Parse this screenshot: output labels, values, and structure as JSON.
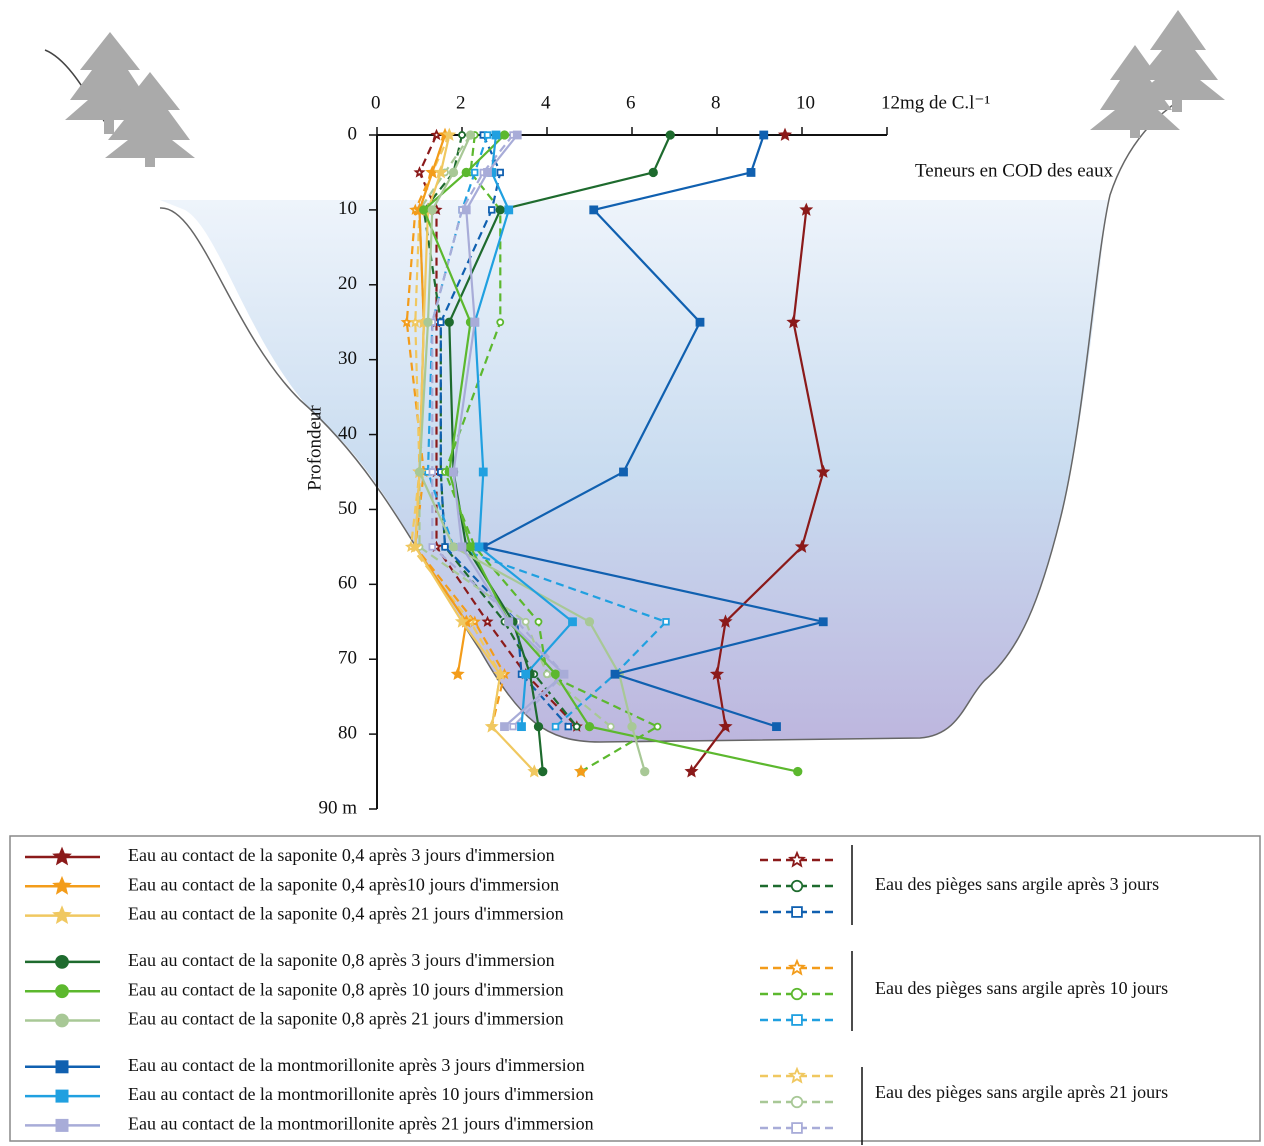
{
  "chart_data": {
    "type": "line",
    "annotation": "Teneurs en COD des eaux",
    "ylabel": "Profondeur",
    "xlim": [
      0,
      12
    ],
    "xticks": [
      0,
      2,
      4,
      6,
      8,
      10,
      {
        "value": 12,
        "label": "12mg de C.l⁻¹"
      }
    ],
    "ylim": [
      0,
      90
    ],
    "yticks": [
      0,
      10,
      20,
      30,
      40,
      50,
      60,
      70,
      80,
      {
        "value": 90,
        "label": "90 m"
      }
    ],
    "y_inverted": true,
    "depths": [
      0,
      5,
      10,
      25,
      45,
      55,
      65,
      72,
      79,
      85
    ],
    "series": [
      {
        "name": "Eau au contact de la saponite 0,4 après 3 jours d'immersion",
        "color": "#8b1a1a",
        "marker": "star",
        "dashed": false,
        "values": [
          9.6,
          null,
          10.1,
          9.8,
          10.5,
          10.0,
          8.2,
          8.0,
          8.2,
          7.4
        ]
      },
      {
        "name": "Eau au contact de la saponite 0,4 après10 jours d'immersion",
        "color": "#f39c1a",
        "marker": "star",
        "dashed": false,
        "values": [
          1.6,
          1.3,
          1.0,
          1.1,
          1.0,
          0.9,
          2.1,
          1.9,
          null,
          4.8
        ]
      },
      {
        "name": "Eau au contact de la saponite 0,4 après 21 jours d'immersion",
        "color": "#f0c860",
        "marker": "star",
        "dashed": false,
        "values": [
          1.7,
          1.5,
          1.2,
          1.1,
          1.0,
          0.9,
          2.0,
          2.9,
          2.7,
          3.7
        ]
      },
      {
        "name": "Eau au contact de la saponite 0,8 après 3 jours d'immersion",
        "color": "#1e6b2e",
        "marker": "circle",
        "dashed": false,
        "values": [
          6.9,
          6.5,
          2.9,
          1.7,
          1.8,
          2.1,
          3.2,
          3.6,
          3.8,
          3.9
        ]
      },
      {
        "name": "Eau au contact de la saponite 0,8 après 10 jours d'immersion",
        "color": "#5cb82e",
        "marker": "circle",
        "dashed": false,
        "values": [
          3.0,
          2.1,
          1.1,
          2.2,
          1.7,
          2.2,
          3.1,
          4.2,
          5.0,
          9.9
        ]
      },
      {
        "name": "Eau au contact de la saponite 0,8 après 21 jours d'immersion",
        "color": "#a8c896",
        "marker": "circle",
        "dashed": false,
        "values": [
          2.2,
          1.8,
          1.3,
          1.2,
          1.0,
          1.8,
          5.0,
          5.7,
          6.0,
          6.3
        ]
      },
      {
        "name": "Eau au contact de la montmorillonite après 3 jours d'immersion",
        "color": "#1060b0",
        "marker": "square",
        "dashed": false,
        "values": [
          9.1,
          8.8,
          5.1,
          7.6,
          5.8,
          2.5,
          10.5,
          5.6,
          9.4,
          null
        ]
      },
      {
        "name": "Eau au contact de la montmorillonite après 10 jours d'immersion",
        "color": "#20a0e0",
        "marker": "square",
        "dashed": false,
        "values": [
          2.8,
          2.7,
          3.1,
          2.3,
          2.5,
          2.4,
          4.6,
          3.5,
          3.4,
          null
        ]
      },
      {
        "name": "Eau au contact de la montmorillonite après 21 jours d'immersion",
        "color": "#a8acd8",
        "marker": "square",
        "dashed": false,
        "values": [
          3.3,
          2.6,
          2.1,
          2.3,
          1.8,
          2.0,
          3.1,
          4.4,
          3.0,
          null
        ]
      },
      {
        "color": "#8b1a1a",
        "marker": "star",
        "dashed": true,
        "values": [
          1.4,
          1.0,
          1.4,
          1.4,
          1.4,
          1.4,
          2.6,
          3.5,
          4.7,
          null
        ]
      },
      {
        "color": "#1e6b2e",
        "marker": "circle",
        "dashed": true,
        "values": [
          2.0,
          1.8,
          1.1,
          1.5,
          1.5,
          1.6,
          3.0,
          3.7,
          4.7,
          null
        ]
      },
      {
        "color": "#1060b0",
        "marker": "square",
        "dashed": true,
        "values": [
          2.5,
          2.9,
          2.7,
          1.5,
          1.5,
          1.6,
          3.3,
          3.4,
          4.5,
          null
        ]
      },
      {
        "color": "#f39c1a",
        "marker": "star",
        "dashed": true,
        "values": [
          1.6,
          1.3,
          0.9,
          0.7,
          1.1,
          0.9,
          2.3,
          3.0,
          2.7,
          null
        ]
      },
      {
        "color": "#5cb82e",
        "marker": "circle",
        "dashed": true,
        "values": [
          2.3,
          2.2,
          2.9,
          2.9,
          1.6,
          2.3,
          3.8,
          4.0,
          6.6,
          4.8
        ]
      },
      {
        "color": "#20a0e0",
        "marker": "square",
        "dashed": true,
        "values": [
          2.6,
          2.3,
          2.0,
          1.3,
          1.2,
          1.8,
          6.8,
          5.6,
          4.2,
          null
        ]
      },
      {
        "color": "#f0c860",
        "marker": "star",
        "dashed": true,
        "values": [
          1.7,
          1.3,
          1.0,
          0.9,
          1.0,
          0.8,
          2.2,
          2.9,
          2.7,
          null
        ]
      },
      {
        "color": "#a8c896",
        "marker": "circle",
        "dashed": true,
        "values": [
          2.2,
          1.6,
          1.0,
          1.1,
          1.0,
          1.0,
          3.5,
          4.0,
          5.5,
          null
        ]
      },
      {
        "color": "#a8acd8",
        "marker": "square",
        "dashed": true,
        "values": [
          3.2,
          2.5,
          2.0,
          1.3,
          1.3,
          1.3,
          3.3,
          4.4,
          3.2,
          null
        ]
      }
    ],
    "legend_groups": [
      "Eau des pièges sans argile après 3 jours",
      "Eau des pièges sans argile après 10 jours",
      "Eau des pièges sans argile après 21 jours"
    ]
  }
}
